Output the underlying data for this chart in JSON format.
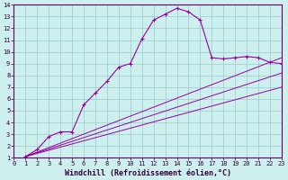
{
  "xlabel": "Windchill (Refroidissement éolien,°C)",
  "bg_color": "#cdf0ee",
  "line_color": "#990099",
  "grid_color": "#99cccc",
  "xmin": 0,
  "xmax": 23,
  "ymin": 1,
  "ymax": 14,
  "curve_x": [
    1,
    2,
    3,
    4,
    5,
    6,
    7,
    8,
    9,
    10,
    11,
    12,
    13,
    14,
    15,
    16,
    17,
    18,
    19,
    20,
    21,
    22,
    23
  ],
  "curve_y": [
    1.1,
    1.7,
    2.8,
    3.2,
    3.2,
    5.5,
    6.5,
    7.5,
    8.7,
    9.0,
    11.1,
    12.7,
    13.2,
    13.7,
    13.4,
    12.7,
    9.5,
    9.4,
    9.5,
    9.6,
    9.5,
    9.1,
    9.0
  ],
  "line1_x": [
    1,
    23
  ],
  "line1_y": [
    1.1,
    9.5
  ],
  "line2_x": [
    1,
    23
  ],
  "line2_y": [
    1.1,
    8.2
  ],
  "line3_x": [
    1,
    23
  ],
  "line3_y": [
    1.1,
    7.0
  ],
  "tick_fontsize": 5.0,
  "label_fontsize": 6.0,
  "spine_color": "#660066",
  "tick_color": "#330033"
}
